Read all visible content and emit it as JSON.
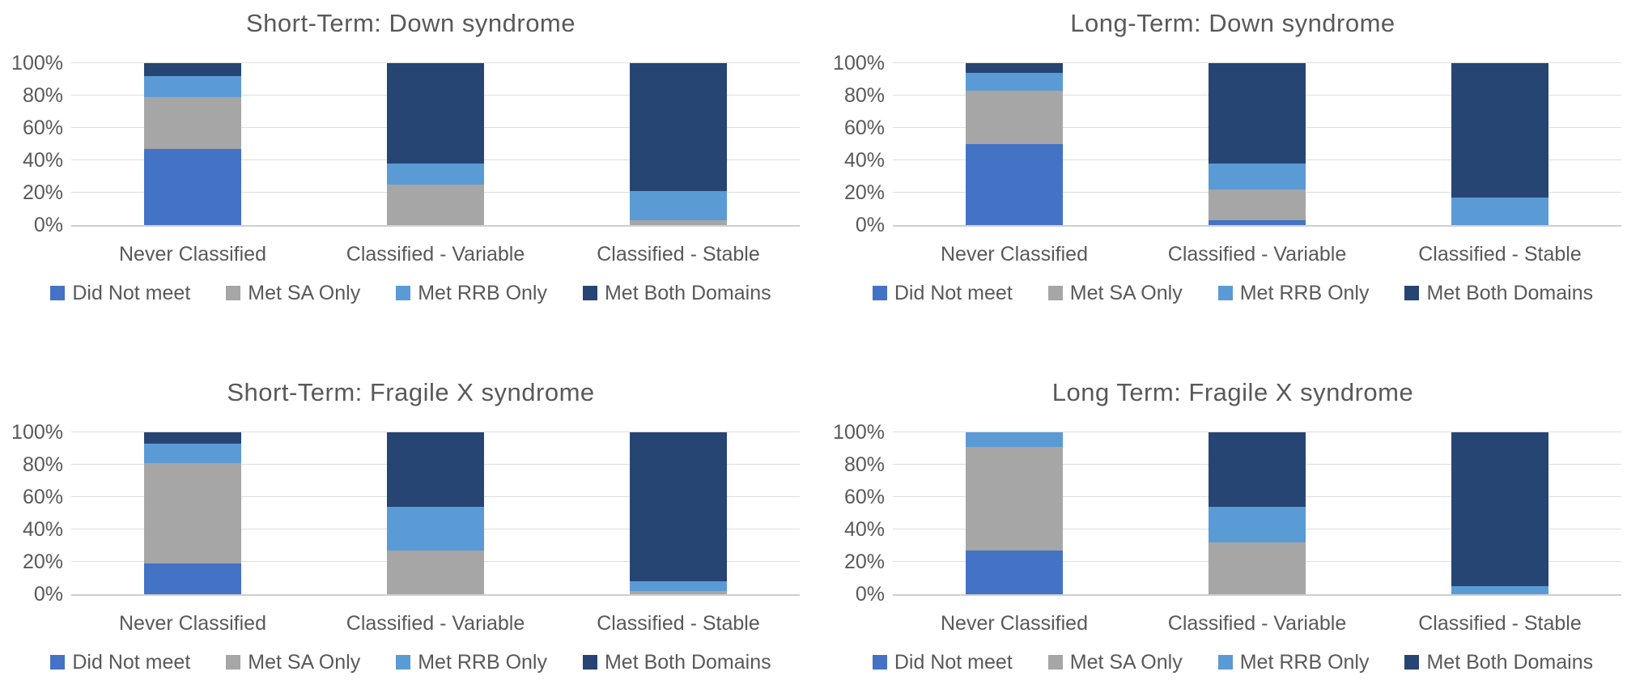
{
  "figure": {
    "background": "#ffffff",
    "text_color": "#595959",
    "gridline_color": "#dedede",
    "axis_line_color": "#cfcfcf"
  },
  "palette": {
    "did_not_meet": "#4472C4",
    "met_sa_only": "#A6A6A6",
    "met_rrb_only": "#5B9BD5",
    "met_both_domains": "#264573"
  },
  "chart_data": [
    {
      "type": "bar",
      "stacked": "percent",
      "title": "Short-Term: Down syndrome",
      "categories": [
        "Never Classified",
        "Classified - Variable",
        "Classified - Stable"
      ],
      "series": [
        {
          "name": "Did Not meet",
          "color": "#4472C4",
          "values": [
            47,
            0,
            0
          ]
        },
        {
          "name": "Met SA Only",
          "color": "#A6A6A6",
          "values": [
            32,
            25,
            3
          ]
        },
        {
          "name": "Met RRB Only",
          "color": "#5B9BD5",
          "values": [
            13,
            13,
            18
          ]
        },
        {
          "name": "Met Both Domains",
          "color": "#264573",
          "values": [
            8,
            62,
            79
          ]
        }
      ],
      "ylabel": "",
      "xlabel": "",
      "ylim": [
        0,
        100
      ],
      "yticks": [
        "0%",
        "20%",
        "40%",
        "60%",
        "80%",
        "100%"
      ],
      "grid": true,
      "legend_position": "bottom"
    },
    {
      "type": "bar",
      "stacked": "percent",
      "title": "Long-Term: Down syndrome",
      "categories": [
        "Never Classified",
        "Classified - Variable",
        "Classified - Stable"
      ],
      "series": [
        {
          "name": "Did Not meet",
          "color": "#4472C4",
          "values": [
            50,
            3,
            0
          ]
        },
        {
          "name": "Met SA Only",
          "color": "#A6A6A6",
          "values": [
            33,
            19,
            0
          ]
        },
        {
          "name": "Met RRB Only",
          "color": "#5B9BD5",
          "values": [
            11,
            16,
            17
          ]
        },
        {
          "name": "Met Both Domains",
          "color": "#264573",
          "values": [
            6,
            62,
            83
          ]
        }
      ],
      "ylabel": "",
      "xlabel": "",
      "ylim": [
        0,
        100
      ],
      "yticks": [
        "0%",
        "20%",
        "40%",
        "60%",
        "80%",
        "100%"
      ],
      "grid": true,
      "legend_position": "bottom"
    },
    {
      "type": "bar",
      "stacked": "percent",
      "title": "Short-Term: Fragile X syndrome",
      "categories": [
        "Never Classified",
        "Classified - Variable",
        "Classified - Stable"
      ],
      "series": [
        {
          "name": "Did Not meet",
          "color": "#4472C4",
          "values": [
            19,
            0,
            0
          ]
        },
        {
          "name": "Met SA Only",
          "color": "#A6A6A6",
          "values": [
            62,
            27,
            2
          ]
        },
        {
          "name": "Met RRB Only",
          "color": "#5B9BD5",
          "values": [
            12,
            27,
            6
          ]
        },
        {
          "name": "Met Both Domains",
          "color": "#264573",
          "values": [
            7,
            46,
            92
          ]
        }
      ],
      "ylabel": "",
      "xlabel": "",
      "ylim": [
        0,
        100
      ],
      "yticks": [
        "0%",
        "20%",
        "40%",
        "60%",
        "80%",
        "100%"
      ],
      "grid": true,
      "legend_position": "bottom"
    },
    {
      "type": "bar",
      "stacked": "percent",
      "title": "Long Term: Fragile X syndrome",
      "categories": [
        "Never Classified",
        "Classified - Variable",
        "Classified - Stable"
      ],
      "series": [
        {
          "name": "Did Not meet",
          "color": "#4472C4",
          "values": [
            27,
            0,
            0
          ]
        },
        {
          "name": "Met SA Only",
          "color": "#A6A6A6",
          "values": [
            64,
            32,
            0
          ]
        },
        {
          "name": "Met RRB Only",
          "color": "#5B9BD5",
          "values": [
            9,
            22,
            5
          ]
        },
        {
          "name": "Met Both Domains",
          "color": "#264573",
          "values": [
            0,
            46,
            95
          ]
        }
      ],
      "ylabel": "",
      "xlabel": "",
      "ylim": [
        0,
        100
      ],
      "yticks": [
        "0%",
        "20%",
        "40%",
        "60%",
        "80%",
        "100%"
      ],
      "grid": true,
      "legend_position": "bottom"
    }
  ]
}
